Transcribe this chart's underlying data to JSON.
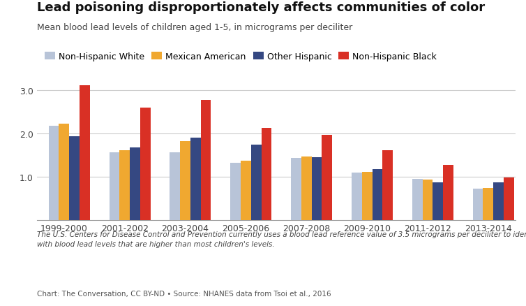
{
  "title": "Lead poisoning disproportionately affects communities of color",
  "subtitle": "Mean blood lead levels of children aged 1-5, in micrograms per deciliter",
  "footnote": "The U.S. Centers for Disease Control and Prevention currently uses a blood lead reference value of 3.5 micrograms per deciliter to identify children\nwith blood lead levels that are higher than most children's levels.",
  "source": "Chart: The Conversation, CC BY-ND • Source: NHANES data from Tsoi et al., 2016",
  "categories": [
    "1999-2000",
    "2001-2002",
    "2003-2004",
    "2005-2006",
    "2007-2008",
    "2009-2010",
    "2011-2012",
    "2013-2014"
  ],
  "groups": [
    "Non-Hispanic White",
    "Mexican American",
    "Other Hispanic",
    "Non-Hispanic Black"
  ],
  "colors": [
    "#b8c4d8",
    "#f0a830",
    "#354882",
    "#d93025"
  ],
  "data": {
    "Non-Hispanic White": [
      2.18,
      1.57,
      1.57,
      1.32,
      1.44,
      1.1,
      0.95,
      0.73
    ],
    "Mexican American": [
      2.22,
      1.62,
      1.82,
      1.38,
      1.47,
      1.12,
      0.93,
      0.75
    ],
    "Other Hispanic": [
      1.93,
      1.68,
      1.9,
      1.75,
      1.46,
      1.18,
      0.87,
      0.88
    ],
    "Non-Hispanic Black": [
      3.12,
      2.6,
      2.77,
      2.13,
      1.97,
      1.61,
      1.28,
      0.99
    ]
  },
  "ylim": [
    0,
    3.4
  ],
  "yticks": [
    1.0,
    2.0,
    3.0
  ],
  "background_color": "#ffffff"
}
